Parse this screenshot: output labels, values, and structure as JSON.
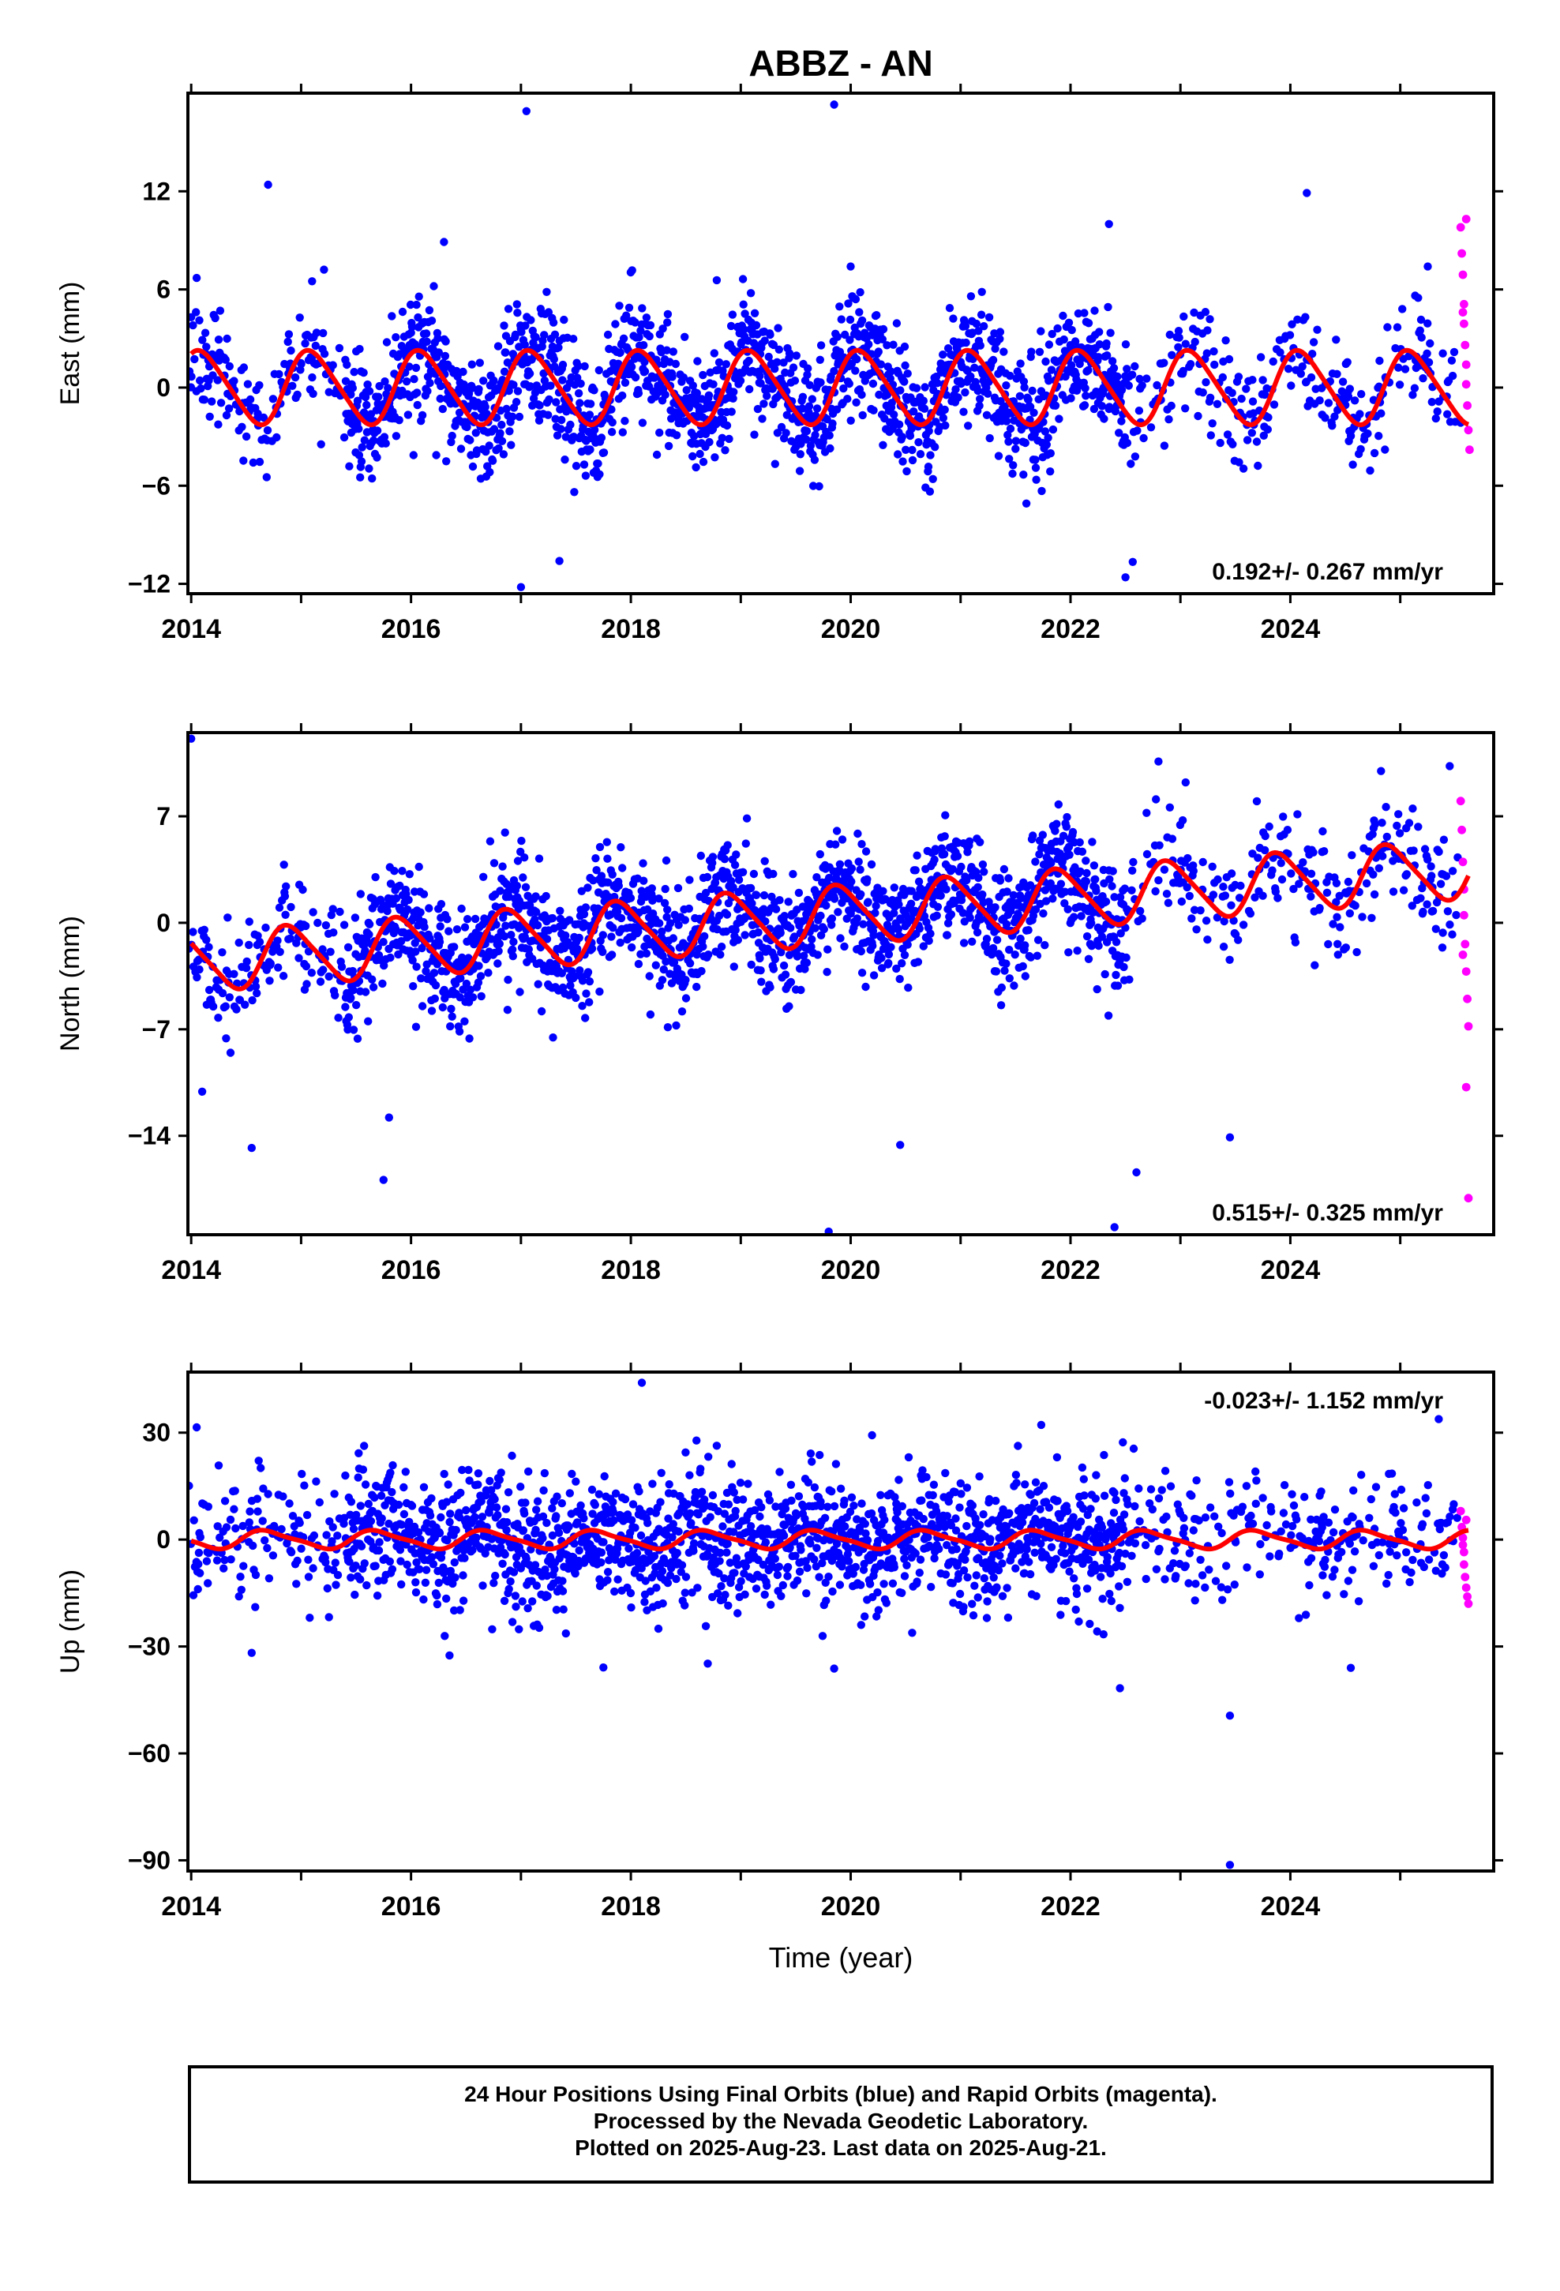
{
  "chart_data": [
    {
      "type": "scatter",
      "title": "ABBZ - AN",
      "ylabel": "East (mm)",
      "xlabel": "",
      "xlim": [
        2013.97,
        2025.85
      ],
      "ylim": [
        -12.6,
        18.0
      ],
      "yticks": [
        -12,
        -6,
        0,
        6,
        12
      ],
      "xticks": [
        2014,
        2016,
        2018,
        2020,
        2022,
        2024
      ],
      "rate_label": "0.192+/- 0.267 mm/yr",
      "grid": false,
      "model": {
        "offset": 0.0,
        "rate": 0.0,
        "annual_amplitude": 2.2,
        "annual_phase": 0.15,
        "semiannual_amplitude": 0.3,
        "color": "#ff0000"
      },
      "series": [
        {
          "color": "#0000ff",
          "kind": "final-orbits",
          "scatter_sd": 1.8,
          "outliers": [
            [
              2014.0,
              4.3
            ],
            [
              2014.05,
              6.7
            ],
            [
              2014.7,
              12.4
            ],
            [
              2015.1,
              6.5
            ],
            [
              2016.3,
              8.9
            ],
            [
              2017.0,
              -12.2
            ],
            [
              2017.05,
              16.9
            ],
            [
              2017.35,
              -10.6
            ],
            [
              2019.85,
              17.3
            ],
            [
              2020.0,
              7.4
            ],
            [
              2022.35,
              10.0
            ],
            [
              2022.5,
              -11.6
            ],
            [
              2024.15,
              11.9
            ],
            [
              2025.25,
              7.4
            ]
          ]
        },
        {
          "color": "#ff00ff",
          "kind": "rapid-orbits",
          "points": [
            [
              2025.55,
              9.8
            ],
            [
              2025.56,
              8.2
            ],
            [
              2025.57,
              6.9
            ],
            [
              2025.58,
              5.1
            ],
            [
              2025.58,
              3.9
            ],
            [
              2025.59,
              2.6
            ],
            [
              2025.6,
              1.4
            ],
            [
              2025.6,
              0.2
            ],
            [
              2025.61,
              -1.1
            ],
            [
              2025.62,
              -2.6
            ],
            [
              2025.63,
              -3.8
            ],
            [
              2025.6,
              10.3
            ],
            [
              2025.57,
              4.6
            ]
          ]
        }
      ]
    },
    {
      "type": "scatter",
      "ylabel": "North (mm)",
      "xlabel": "",
      "xlim": [
        2013.97,
        2025.85
      ],
      "ylim": [
        -20.5,
        12.5
      ],
      "yticks": [
        -14,
        -7,
        0,
        7
      ],
      "xticks": [
        2014,
        2016,
        2018,
        2020,
        2022,
        2024
      ],
      "rate_label": "0.515+/- 0.325 mm/yr",
      "grid": false,
      "model": {
        "offset": -2.6,
        "rate": 0.53,
        "annual_amplitude": 1.9,
        "annual_phase": 0.35,
        "semiannual_amplitude": 0.3,
        "color": "#ff0000"
      },
      "series": [
        {
          "color": "#0000ff",
          "kind": "final-orbits",
          "scatter_sd": 1.9,
          "outliers": [
            [
              2014.0,
              12.1
            ],
            [
              2014.1,
              -11.1
            ],
            [
              2014.55,
              -14.8
            ],
            [
              2015.75,
              -16.9
            ],
            [
              2015.8,
              -12.8
            ],
            [
              2019.8,
              -20.3
            ],
            [
              2020.45,
              -14.6
            ],
            [
              2022.4,
              -20.0
            ],
            [
              2022.6,
              -16.4
            ],
            [
              2023.45,
              -14.1
            ],
            [
              2022.8,
              10.6
            ],
            [
              2025.45,
              10.3
            ]
          ]
        },
        {
          "color": "#ff00ff",
          "kind": "rapid-orbits",
          "points": [
            [
              2025.55,
              8.0
            ],
            [
              2025.56,
              6.1
            ],
            [
              2025.57,
              4.0
            ],
            [
              2025.58,
              2.2
            ],
            [
              2025.58,
              0.5
            ],
            [
              2025.59,
              -1.4
            ],
            [
              2025.6,
              -3.2
            ],
            [
              2025.61,
              -5.0
            ],
            [
              2025.62,
              -6.8
            ],
            [
              2025.6,
              -10.8
            ],
            [
              2025.62,
              -18.1
            ],
            [
              2025.57,
              -2.1
            ]
          ]
        }
      ]
    },
    {
      "type": "scatter",
      "ylabel": "Up (mm)",
      "xlabel": "Time (year)",
      "xlim": [
        2013.97,
        2025.85
      ],
      "ylim": [
        -93.0,
        47.0
      ],
      "yticks": [
        -90,
        -60,
        -30,
        0,
        30
      ],
      "xticks": [
        2014,
        2016,
        2018,
        2020,
        2022,
        2024
      ],
      "rate_label": "-0.023+/- 1.152 mm/yr",
      "grid": false,
      "model": {
        "offset": 0.0,
        "rate": 0.0,
        "annual_amplitude": 2.4,
        "annual_phase": 0.55,
        "semiannual_amplitude": 0.6,
        "color": "#ff0000"
      },
      "series": [
        {
          "color": "#0000ff",
          "kind": "final-orbits",
          "scatter_sd": 9.0,
          "outliers": [
            [
              2014.05,
              31.5
            ],
            [
              2014.55,
              -31.8
            ],
            [
              2016.35,
              -32.5
            ],
            [
              2017.75,
              -35.9
            ],
            [
              2018.1,
              44.0
            ],
            [
              2018.7,
              -34.8
            ],
            [
              2019.85,
              -36.2
            ],
            [
              2022.45,
              -41.7
            ],
            [
              2023.45,
              -49.4
            ],
            [
              2023.45,
              -91.3
            ],
            [
              2024.55,
              -36.0
            ],
            [
              2025.35,
              33.8
            ]
          ]
        },
        {
          "color": "#ff00ff",
          "kind": "rapid-orbits",
          "points": [
            [
              2025.55,
              8.0
            ],
            [
              2025.56,
              3.5
            ],
            [
              2025.57,
              0.5
            ],
            [
              2025.58,
              -3.5
            ],
            [
              2025.58,
              -7.0
            ],
            [
              2025.59,
              -10.5
            ],
            [
              2025.6,
              -13.5
            ],
            [
              2025.61,
              -16.0
            ],
            [
              2025.62,
              -18.0
            ],
            [
              2025.6,
              5.5
            ],
            [
              2025.57,
              -1.5
            ]
          ]
        }
      ]
    }
  ],
  "footer": {
    "line1": "24 Hour Positions Using Final Orbits (blue) and Rapid Orbits (magenta).",
    "line2": "Processed by the Nevada Geodetic Laboratory.",
    "line3": "Plotted on 2025-Aug-23. Last data on 2025-Aug-21."
  }
}
